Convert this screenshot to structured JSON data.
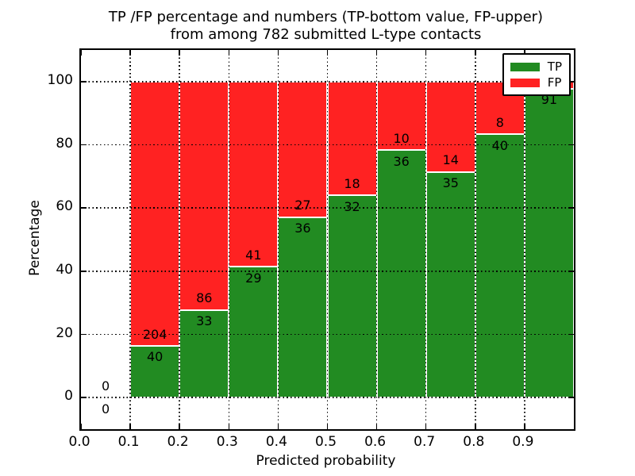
{
  "figure": {
    "title_line1": "TP /FP percentage and numbers (TP-bottom value, FP-upper)",
    "title_line2": "from among 782 submitted L-type contacts"
  },
  "chart_data": {
    "type": "bar",
    "subtype": "stacked-100-percent-histogram",
    "title": "TP /FP percentage and numbers (TP-bottom value, FP-upper) from among 782 submitted L-type contacts",
    "xlabel": "Predicted probability",
    "ylabel": "Percentage",
    "xlim": [
      0.0,
      1.0
    ],
    "ylim": [
      -10,
      110
    ],
    "xticks": [
      0.0,
      0.1,
      0.2,
      0.3,
      0.4,
      0.5,
      0.6,
      0.7,
      0.8,
      0.9
    ],
    "xtick_labels": [
      "0.0",
      "0.1",
      "0.2",
      "0.3",
      "0.4",
      "0.5",
      "0.6",
      "0.7",
      "0.8",
      "0.9"
    ],
    "yticks": [
      0,
      20,
      40,
      60,
      80,
      100
    ],
    "ytick_labels": [
      "0",
      "20",
      "40",
      "60",
      "80",
      "100"
    ],
    "grid": {
      "visible": true,
      "style": "dotted",
      "color": "#000000"
    },
    "colors": {
      "tp": "#228b22",
      "fp": "#ff2222",
      "bar_edge": "#ffffff"
    },
    "legend": {
      "position": "upper-right",
      "entries": [
        {
          "label": "TP",
          "color": "#228b22"
        },
        {
          "label": "FP",
          "color": "#ff2222"
        }
      ]
    },
    "label_offset_pct": 3.6,
    "bins": [
      {
        "x0": 0.0,
        "x1": 0.1,
        "tp": 0,
        "fp": 0,
        "tp_pct": 0,
        "fp_pct": 0,
        "tp_label": "0",
        "fp_label": "0"
      },
      {
        "x0": 0.1,
        "x1": 0.2,
        "tp": 40,
        "fp": 204,
        "tp_pct": 16.4,
        "fp_pct": 83.6,
        "tp_label": "40",
        "fp_label": "204"
      },
      {
        "x0": 0.2,
        "x1": 0.3,
        "tp": 33,
        "fp": 86,
        "tp_pct": 27.7,
        "fp_pct": 72.3,
        "tp_label": "33",
        "fp_label": "86"
      },
      {
        "x0": 0.3,
        "x1": 0.4,
        "tp": 29,
        "fp": 41,
        "tp_pct": 41.4,
        "fp_pct": 58.6,
        "tp_label": "29",
        "fp_label": "41"
      },
      {
        "x0": 0.4,
        "x1": 0.5,
        "tp": 36,
        "fp": 27,
        "tp_pct": 57.1,
        "fp_pct": 42.9,
        "tp_label": "36",
        "fp_label": "27"
      },
      {
        "x0": 0.5,
        "x1": 0.6,
        "tp": 32,
        "fp": 18,
        "tp_pct": 64.0,
        "fp_pct": 36.0,
        "tp_label": "32",
        "fp_label": "18"
      },
      {
        "x0": 0.6,
        "x1": 0.7,
        "tp": 36,
        "fp": 10,
        "tp_pct": 78.3,
        "fp_pct": 21.7,
        "tp_label": "36",
        "fp_label": "10"
      },
      {
        "x0": 0.7,
        "x1": 0.8,
        "tp": 35,
        "fp": 14,
        "tp_pct": 71.4,
        "fp_pct": 28.6,
        "tp_label": "35",
        "fp_label": "14"
      },
      {
        "x0": 0.8,
        "x1": 0.9,
        "tp": 40,
        "fp": 8,
        "tp_pct": 83.3,
        "fp_pct": 16.7,
        "tp_label": "40",
        "fp_label": "8"
      },
      {
        "x0": 0.9,
        "x1": 1.0,
        "tp": 91,
        "fp": null,
        "tp_pct": 97.8,
        "fp_pct": 2.2,
        "tp_label": "91",
        "fp_label": null
      }
    ]
  }
}
